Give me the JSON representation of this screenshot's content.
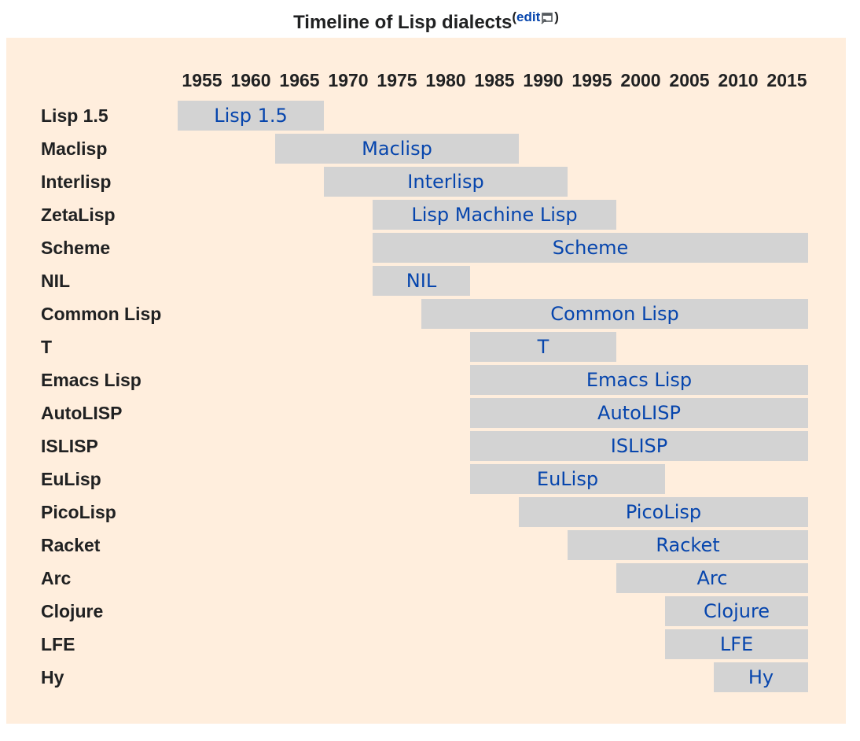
{
  "caption": {
    "title": "Timeline of Lisp dialects",
    "edit_label": "edit"
  },
  "chart_data": {
    "type": "bar",
    "title": "Timeline of Lisp dialects",
    "x_ticks": [
      "1955",
      "1960",
      "1965",
      "1970",
      "1975",
      "1980",
      "1985",
      "1990",
      "1995",
      "2000",
      "2005",
      "2010",
      "2015"
    ],
    "xlim": [
      1955,
      2020
    ],
    "rows": [
      {
        "label": "Lisp 1.5",
        "bar_label": "Lisp 1.5",
        "start": 1955,
        "end": 1970
      },
      {
        "label": "Maclisp",
        "bar_label": "Maclisp",
        "start": 1965,
        "end": 1990
      },
      {
        "label": "Interlisp",
        "bar_label": "Interlisp",
        "start": 1970,
        "end": 1995
      },
      {
        "label": "ZetaLisp",
        "bar_label": "Lisp Machine Lisp",
        "start": 1975,
        "end": 2000
      },
      {
        "label": "Scheme",
        "bar_label": "Scheme",
        "start": 1975,
        "end": 2020
      },
      {
        "label": "NIL",
        "bar_label": "NIL",
        "start": 1975,
        "end": 1985
      },
      {
        "label": "Common Lisp",
        "bar_label": "Common Lisp",
        "start": 1980,
        "end": 2020
      },
      {
        "label": "T",
        "bar_label": "T",
        "start": 1985,
        "end": 2000
      },
      {
        "label": "Emacs Lisp",
        "bar_label": "Emacs Lisp",
        "start": 1985,
        "end": 2020
      },
      {
        "label": "AutoLISP",
        "bar_label": "AutoLISP",
        "start": 1985,
        "end": 2020
      },
      {
        "label": "ISLISP",
        "bar_label": "ISLISP",
        "start": 1985,
        "end": 2020
      },
      {
        "label": "EuLisp",
        "bar_label": "EuLisp",
        "start": 1985,
        "end": 2005
      },
      {
        "label": "PicoLisp",
        "bar_label": "PicoLisp",
        "start": 1990,
        "end": 2020
      },
      {
        "label": "Racket",
        "bar_label": "Racket",
        "start": 1995,
        "end": 2020
      },
      {
        "label": "Arc",
        "bar_label": "Arc",
        "start": 2000,
        "end": 2020
      },
      {
        "label": "Clojure",
        "bar_label": "Clojure",
        "start": 2005,
        "end": 2020
      },
      {
        "label": "LFE",
        "bar_label": "LFE",
        "start": 2005,
        "end": 2020
      },
      {
        "label": "Hy",
        "bar_label": "Hy",
        "start": 2010,
        "end": 2020
      }
    ],
    "colors": {
      "background": "#ffeedd",
      "bar": "#d3d3d3",
      "bar_text": "#0645ad",
      "label_text": "#202122"
    }
  }
}
